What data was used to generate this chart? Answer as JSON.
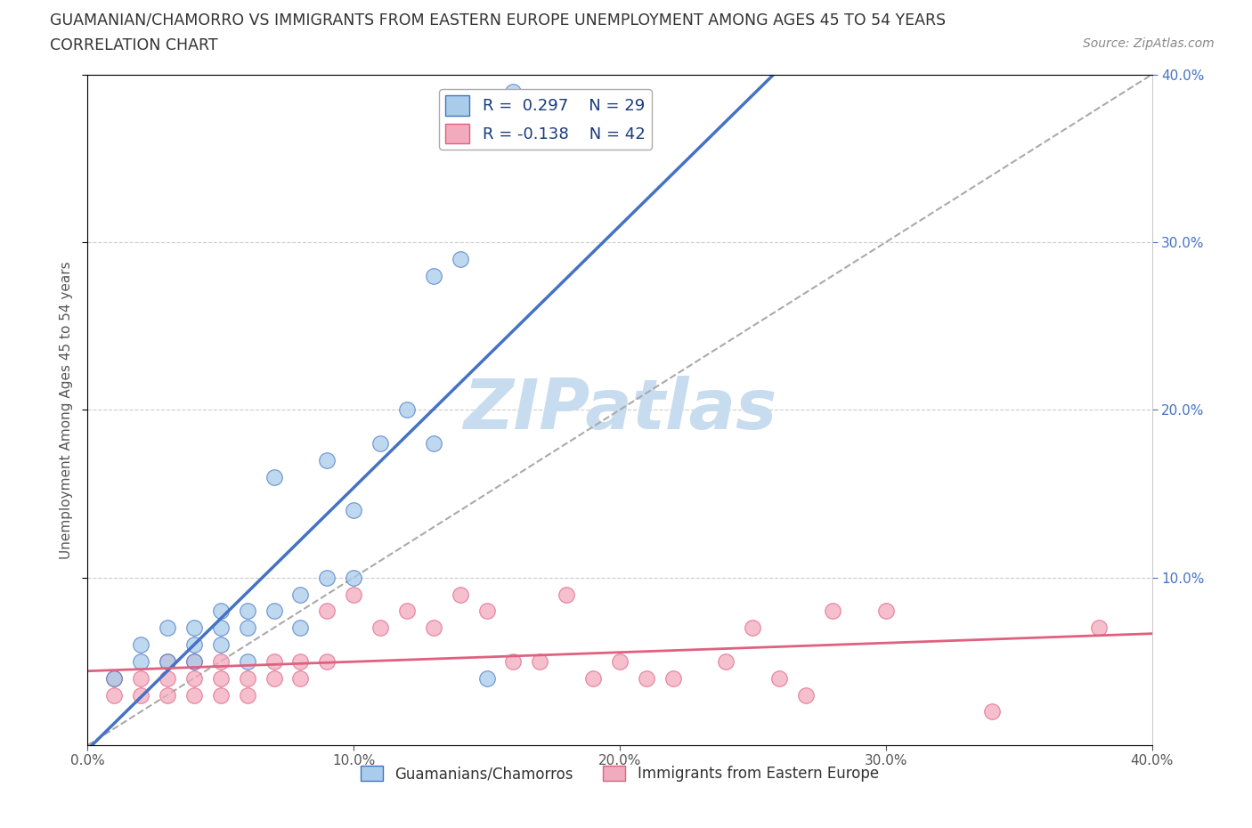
{
  "title_line1": "GUAMANIAN/CHAMORRO VS IMMIGRANTS FROM EASTERN EUROPE UNEMPLOYMENT AMONG AGES 45 TO 54 YEARS",
  "title_line2": "CORRELATION CHART",
  "source_text": "Source: ZipAtlas.com",
  "ylabel": "Unemployment Among Ages 45 to 54 years",
  "xlim": [
    0.0,
    0.4
  ],
  "ylim": [
    0.0,
    0.4
  ],
  "xticks": [
    0.0,
    0.1,
    0.2,
    0.3,
    0.4
  ],
  "yticks": [
    0.1,
    0.2,
    0.3,
    0.4
  ],
  "xticklabels": [
    "0.0%",
    "10.0%",
    "20.0%",
    "30.0%",
    "40.0%"
  ],
  "yticklabels_right": [
    "10.0%",
    "20.0%",
    "30.0%",
    "40.0%"
  ],
  "legend_labels": [
    "Guamanians/Chamorros",
    "Immigrants from Eastern Europe"
  ],
  "R_blue": 0.297,
  "N_blue": 29,
  "R_pink": -0.138,
  "N_pink": 42,
  "color_blue": "#A8CCEA",
  "color_pink": "#F2AABE",
  "line_blue": "#4472C4",
  "line_pink": "#E06080",
  "line_dashed_color": "#AAAAAA",
  "watermark": "ZIPatlas",
  "watermark_color": "#C8DCF0",
  "blue_x": [
    0.01,
    0.02,
    0.02,
    0.03,
    0.03,
    0.04,
    0.04,
    0.04,
    0.05,
    0.05,
    0.05,
    0.06,
    0.06,
    0.06,
    0.07,
    0.07,
    0.08,
    0.08,
    0.09,
    0.09,
    0.1,
    0.1,
    0.11,
    0.12,
    0.13,
    0.13,
    0.14,
    0.15,
    0.16
  ],
  "blue_y": [
    0.04,
    0.05,
    0.06,
    0.05,
    0.07,
    0.05,
    0.06,
    0.07,
    0.06,
    0.07,
    0.08,
    0.05,
    0.07,
    0.08,
    0.08,
    0.16,
    0.07,
    0.09,
    0.1,
    0.17,
    0.1,
    0.14,
    0.18,
    0.2,
    0.18,
    0.28,
    0.29,
    0.04,
    0.39
  ],
  "pink_x": [
    0.01,
    0.01,
    0.02,
    0.02,
    0.03,
    0.03,
    0.03,
    0.04,
    0.04,
    0.04,
    0.05,
    0.05,
    0.05,
    0.06,
    0.06,
    0.07,
    0.07,
    0.08,
    0.08,
    0.09,
    0.09,
    0.1,
    0.11,
    0.12,
    0.13,
    0.14,
    0.15,
    0.16,
    0.17,
    0.18,
    0.19,
    0.2,
    0.21,
    0.22,
    0.24,
    0.25,
    0.26,
    0.27,
    0.28,
    0.3,
    0.34,
    0.38
  ],
  "pink_y": [
    0.03,
    0.04,
    0.03,
    0.04,
    0.03,
    0.04,
    0.05,
    0.03,
    0.04,
    0.05,
    0.03,
    0.04,
    0.05,
    0.03,
    0.04,
    0.04,
    0.05,
    0.04,
    0.05,
    0.05,
    0.08,
    0.09,
    0.07,
    0.08,
    0.07,
    0.09,
    0.08,
    0.05,
    0.05,
    0.09,
    0.04,
    0.05,
    0.04,
    0.04,
    0.05,
    0.07,
    0.04,
    0.03,
    0.08,
    0.08,
    0.02,
    0.07
  ]
}
